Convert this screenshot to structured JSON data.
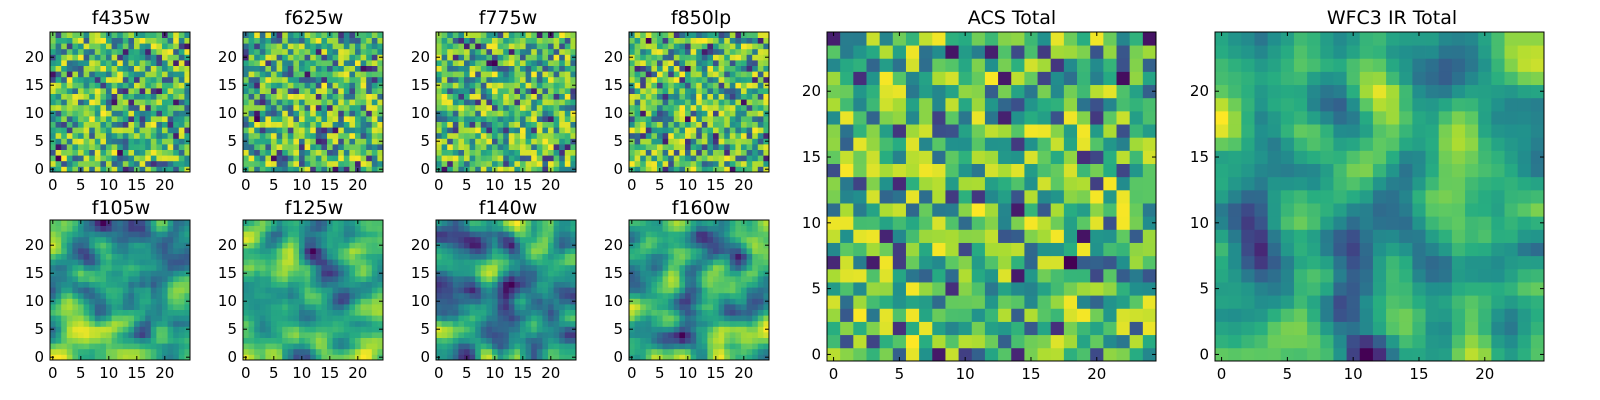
{
  "chart_data": [
    {
      "type": "heatmap",
      "title": "f435w",
      "xlabel": "",
      "ylabel": "",
      "shape": [
        25,
        25
      ],
      "xticks": [
        "0",
        "5",
        "10",
        "15",
        "20"
      ],
      "yticks": [
        "0",
        "5",
        "10",
        "15",
        "20"
      ],
      "colormap": "viridis",
      "colorbar": false,
      "pattern": "noise"
    },
    {
      "type": "heatmap",
      "title": "f625w",
      "xlabel": "",
      "ylabel": "",
      "shape": [
        25,
        25
      ],
      "xticks": [
        "0",
        "5",
        "10",
        "15",
        "20"
      ],
      "yticks": [
        "0",
        "5",
        "10",
        "15",
        "20"
      ],
      "colormap": "viridis",
      "colorbar": false,
      "pattern": "noise"
    },
    {
      "type": "heatmap",
      "title": "f775w",
      "xlabel": "",
      "ylabel": "",
      "shape": [
        25,
        25
      ],
      "xticks": [
        "0",
        "5",
        "10",
        "15",
        "20"
      ],
      "yticks": [
        "0",
        "5",
        "10",
        "15",
        "20"
      ],
      "colormap": "viridis",
      "colorbar": false,
      "pattern": "noise"
    },
    {
      "type": "heatmap",
      "title": "f850lp",
      "xlabel": "",
      "ylabel": "",
      "shape": [
        25,
        25
      ],
      "xticks": [
        "0",
        "5",
        "10",
        "15",
        "20"
      ],
      "yticks": [
        "0",
        "5",
        "10",
        "15",
        "20"
      ],
      "colormap": "viridis",
      "colorbar": false,
      "pattern": "noise"
    },
    {
      "type": "heatmap",
      "title": "f105w",
      "xlabel": "",
      "ylabel": "",
      "shape": [
        25,
        25
      ],
      "xticks": [
        "0",
        "5",
        "10",
        "15",
        "20"
      ],
      "yticks": [
        "0",
        "5",
        "10",
        "15",
        "20"
      ],
      "colormap": "viridis",
      "colorbar": false,
      "pattern": "smooth"
    },
    {
      "type": "heatmap",
      "title": "f125w",
      "xlabel": "",
      "ylabel": "",
      "shape": [
        25,
        25
      ],
      "xticks": [
        "0",
        "5",
        "10",
        "15",
        "20"
      ],
      "yticks": [
        "0",
        "5",
        "10",
        "15",
        "20"
      ],
      "colormap": "viridis",
      "colorbar": false,
      "pattern": "smooth"
    },
    {
      "type": "heatmap",
      "title": "f140w",
      "xlabel": "",
      "ylabel": "",
      "shape": [
        25,
        25
      ],
      "xticks": [
        "0",
        "5",
        "10",
        "15",
        "20"
      ],
      "yticks": [
        "0",
        "5",
        "10",
        "15",
        "20"
      ],
      "colormap": "viridis",
      "colorbar": false,
      "pattern": "smooth"
    },
    {
      "type": "heatmap",
      "title": "f160w",
      "xlabel": "",
      "ylabel": "",
      "shape": [
        25,
        25
      ],
      "xticks": [
        "0",
        "5",
        "10",
        "15",
        "20"
      ],
      "yticks": [
        "0",
        "5",
        "10",
        "15",
        "20"
      ],
      "colormap": "viridis",
      "colorbar": false,
      "pattern": "smooth"
    },
    {
      "type": "heatmap",
      "title": "ACS Total",
      "xlabel": "",
      "ylabel": "",
      "shape": [
        25,
        25
      ],
      "xticks": [
        "0",
        "5",
        "10",
        "15",
        "20"
      ],
      "yticks": [
        "0",
        "5",
        "10",
        "15",
        "20"
      ],
      "colormap": "viridis",
      "colorbar": false,
      "pattern": "noise"
    },
    {
      "type": "heatmap",
      "title": "WFC3 IR Total",
      "xlabel": "",
      "ylabel": "",
      "shape": [
        25,
        25
      ],
      "xticks": [
        "0",
        "5",
        "10",
        "15",
        "20"
      ],
      "yticks": [
        "0",
        "5",
        "10",
        "15",
        "20"
      ],
      "colormap": "viridis",
      "colorbar": false,
      "pattern": "smooth"
    }
  ]
}
